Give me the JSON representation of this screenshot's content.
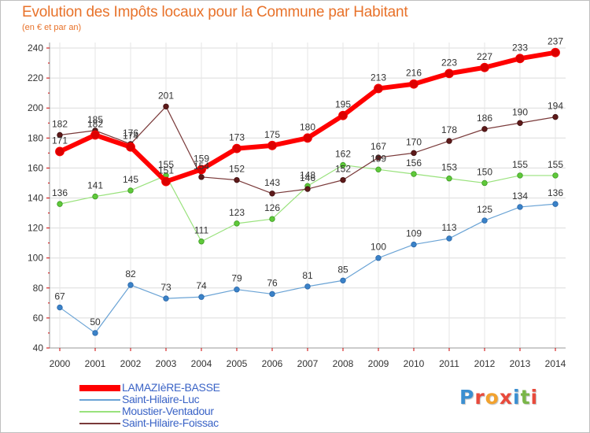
{
  "title": "Evolution des Impôts locaux pour la Commune par Habitant",
  "subtitle": "(en € et par an)",
  "logo": {
    "text": "Proxiti",
    "letters": [
      {
        "ch": "P",
        "color": "#3b8fd1"
      },
      {
        "ch": "r",
        "color": "#e84a3c"
      },
      {
        "ch": "o",
        "color": "#f2a22e"
      },
      {
        "ch": "x",
        "color": "#e84a3c"
      },
      {
        "ch": "i",
        "color": "#3b8fd1"
      },
      {
        "ch": "t",
        "color": "#7ab648"
      },
      {
        "ch": "i",
        "color": "#e84a3c"
      }
    ]
  },
  "chart_data": {
    "type": "line",
    "x": [
      "2000",
      "2001",
      "2002",
      "2003",
      "2004",
      "2005",
      "2006",
      "2007",
      "2008",
      "2009",
      "2010",
      "2011",
      "2012",
      "2013",
      "2014"
    ],
    "ylim": [
      40,
      240
    ],
    "yticks": [
      40,
      60,
      80,
      100,
      120,
      140,
      160,
      180,
      200,
      220,
      240
    ],
    "grid": true,
    "legend_position": "bottom-left",
    "series": [
      {
        "name": "LAMAZIèRE-BASSE",
        "color": "#ff0000",
        "values": [
          171,
          182,
          174,
          151,
          159,
          173,
          175,
          180,
          195,
          213,
          216,
          223,
          227,
          233,
          237
        ]
      },
      {
        "name": "Saint-Hilaire-Luc",
        "color": "#6aa3d5",
        "values": [
          67,
          50,
          82,
          73,
          74,
          79,
          76,
          81,
          85,
          100,
          109,
          113,
          125,
          134,
          136
        ]
      },
      {
        "name": "Moustier-Ventadour",
        "color": "#99e27c",
        "values": [
          136,
          141,
          145,
          155,
          111,
          123,
          126,
          148,
          162,
          159,
          156,
          153,
          150,
          155,
          155
        ]
      },
      {
        "name": "Saint-Hilaire-Foissac",
        "color": "#7a3a3a",
        "values": [
          182,
          185,
          176,
          201,
          154,
          152,
          143,
          146,
          152,
          167,
          170,
          178,
          186,
          190,
          194
        ]
      }
    ]
  }
}
